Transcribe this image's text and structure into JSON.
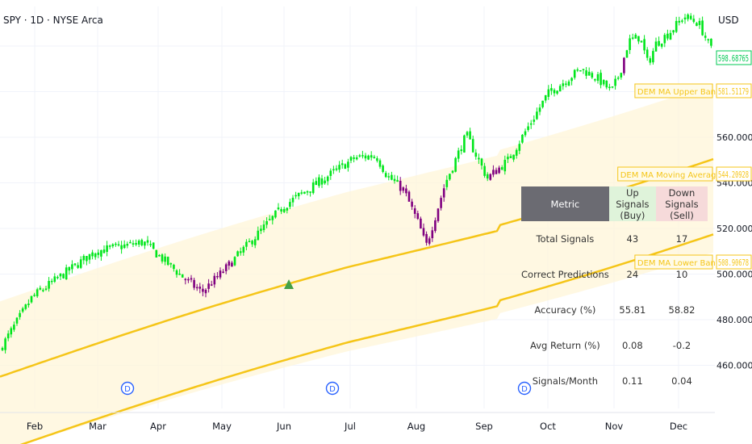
{
  "header": {
    "title": "SPY · 1D · NYSE Arca",
    "currency": "USD"
  },
  "colors": {
    "up_candle": "#00e61b",
    "down_candle": "#800080",
    "ma_line": "#f5c518",
    "band_fill": "#fff6d8",
    "signal_marker": "#43a047",
    "dividend_marker": "#2962ff",
    "price_tag": "#00c853",
    "band_tag": "#f5c518"
  },
  "price_labels": {
    "last_price": "598.68765",
    "upper_band": "581.51179",
    "upper_band_name": "DEM MA Upper Band",
    "moving_average": "544.20928",
    "moving_average_name": "DEM MA Moving Average",
    "lower_band": "508.90678",
    "lower_band_name": "DEM MA Lower Band"
  },
  "dividend_marker_label": "D",
  "table": {
    "headers": [
      "Metric",
      "Up Signals (Buy)",
      "Down Signals (Sell)"
    ],
    "rows": [
      [
        "Total Signals",
        "43",
        "17"
      ],
      [
        "Correct Predictions",
        "24",
        "10"
      ],
      [
        "Accuracy (%)",
        "55.81",
        "58.82"
      ],
      [
        "Avg Return (%)",
        "0.08",
        "-0.2"
      ],
      [
        "Signals/Month",
        "0.11",
        "0.04"
      ]
    ]
  },
  "chart_data": {
    "type": "candlestick",
    "title": "SPY · 1D · NYSE Arca",
    "y_axis_ticks": [
      "560.00000",
      "540.00000",
      "520.00000",
      "500.00000",
      "480.00000",
      "460.00000"
    ],
    "ylim": [
      447,
      617
    ],
    "x_axis_ticks": [
      "Feb",
      "Mar",
      "Apr",
      "May",
      "Jun",
      "Jul",
      "Aug",
      "Sep",
      "Oct",
      "Nov",
      "Dec"
    ],
    "approx_close_path": [
      {
        "month": "Jan-end",
        "close": 467
      },
      {
        "month": "Feb",
        "close": 490
      },
      {
        "month": "Mar",
        "close": 510
      },
      {
        "month": "Apr",
        "close": 514
      },
      {
        "month": "mid-Apr",
        "close": 496
      },
      {
        "month": "May",
        "close": 501
      },
      {
        "month": "Jun",
        "close": 530
      },
      {
        "month": "Jul",
        "close": 551
      },
      {
        "month": "early-Aug",
        "close": 512
      },
      {
        "month": "Sep",
        "close": 561
      },
      {
        "month": "Oct",
        "close": 579
      },
      {
        "month": "Nov",
        "close": 587
      },
      {
        "month": "Dec",
        "close": 606
      },
      {
        "month": "last",
        "close": 598.69
      }
    ],
    "moving_average": {
      "name": "DEM MA Moving Average",
      "last": 544.21
    },
    "upper_band": {
      "name": "DEM MA Upper Band",
      "last": 581.51
    },
    "lower_band": {
      "name": "DEM MA Lower Band",
      "last": 508.91
    },
    "buy_signal_markers": 1,
    "dividend_markers": 3
  }
}
